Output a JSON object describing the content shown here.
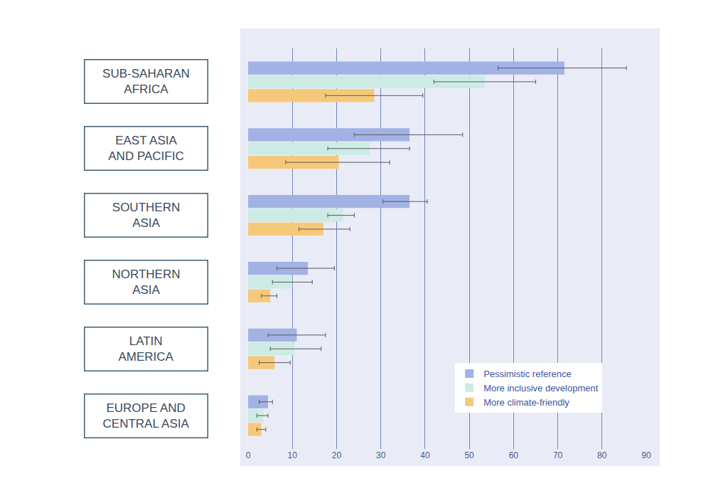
{
  "chart_data": {
    "type": "bar",
    "orientation": "horizontal",
    "categories": [
      "SUB-SAHARAN AFRICA",
      "EAST ASIA AND PACIFIC",
      "SOUTHERN ASIA",
      "NORTHERN ASIA",
      "LATIN AMERICA",
      "EUROPE AND CENTRAL ASIA"
    ],
    "series": [
      {
        "name": "Pessimistic reference",
        "color": "#a3b2e4",
        "values": [
          71.5,
          36.5,
          36.5,
          13.5,
          11,
          4.5
        ],
        "error_low": [
          56.5,
          24,
          30.5,
          6.5,
          4.5,
          2.5
        ],
        "error_high": [
          85.5,
          48.5,
          40.5,
          19.5,
          17.5,
          5.5
        ]
      },
      {
        "name": "More inclusive development",
        "color": "#cdebe5",
        "values": [
          53.5,
          27.5,
          21.5,
          10,
          10.5,
          3.5
        ],
        "error_low": [
          42,
          18,
          18,
          5.5,
          5,
          2
        ],
        "error_high": [
          65,
          36.5,
          24,
          14.5,
          16.5,
          4.5
        ]
      },
      {
        "name": "More climate-friendly",
        "color": "#f6c97a",
        "values": [
          28.5,
          20.5,
          17,
          5,
          6,
          3
        ],
        "error_low": [
          17.5,
          8.5,
          11.5,
          3,
          2.5,
          2
        ],
        "error_high": [
          39.5,
          32,
          23,
          6.5,
          9.5,
          4
        ]
      }
    ],
    "xlim": [
      0,
      90
    ],
    "xticks": [
      0,
      10,
      20,
      30,
      40,
      50,
      60,
      70,
      80,
      90
    ],
    "grid": true,
    "legend": "lower right"
  }
}
